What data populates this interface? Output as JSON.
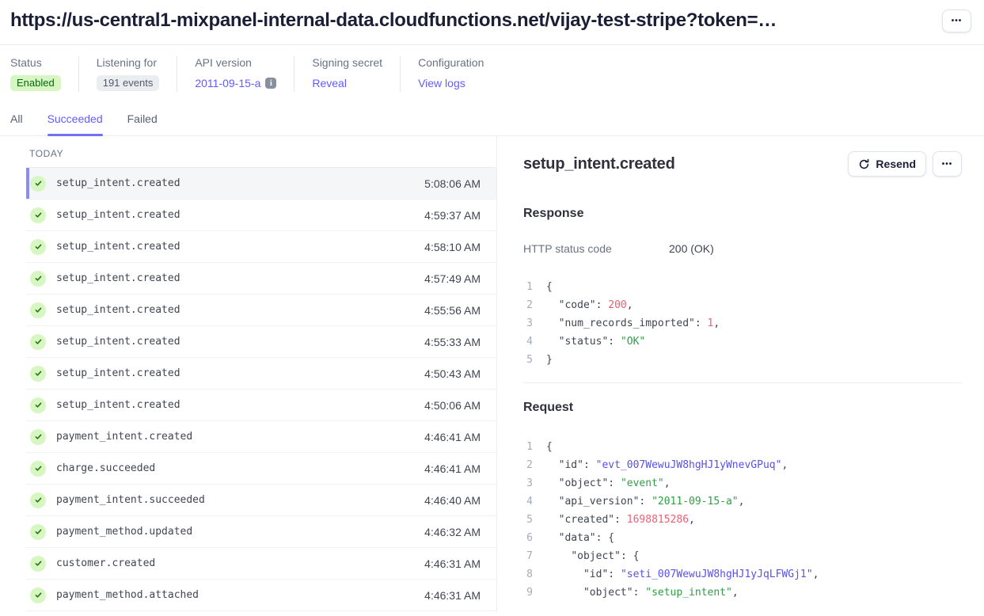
{
  "colors": {
    "accent": "#635bff",
    "success_bg": "#d7f7c2",
    "success_text": "#05690d",
    "code_num": "#ed5f74",
    "code_str": "#2f9e44",
    "code_id": "#5851ea"
  },
  "header": {
    "title": "https://us-central1-mixpanel-internal-data.cloudfunctions.net/vijay-test-stripe?token=…",
    "more_label": "•••"
  },
  "meta": [
    {
      "label": "Status",
      "type": "badge-green",
      "value": "Enabled"
    },
    {
      "label": "Listening for",
      "type": "badge-gray",
      "value": "191 events"
    },
    {
      "label": "API version",
      "type": "link-info",
      "value": "2011-09-15-a",
      "icon": "i"
    },
    {
      "label": "Signing secret",
      "type": "link",
      "value": "Reveal"
    },
    {
      "label": "Configuration",
      "type": "link",
      "value": "View logs"
    }
  ],
  "tabs": [
    {
      "label": "All",
      "active": false
    },
    {
      "label": "Succeeded",
      "active": true
    },
    {
      "label": "Failed",
      "active": false
    }
  ],
  "list": {
    "section_label": "TODAY",
    "rows": [
      {
        "event": "setup_intent.created",
        "time": "5:08:06 AM",
        "selected": true
      },
      {
        "event": "setup_intent.created",
        "time": "4:59:37 AM",
        "selected": false
      },
      {
        "event": "setup_intent.created",
        "time": "4:58:10 AM",
        "selected": false
      },
      {
        "event": "setup_intent.created",
        "time": "4:57:49 AM",
        "selected": false
      },
      {
        "event": "setup_intent.created",
        "time": "4:55:56 AM",
        "selected": false
      },
      {
        "event": "setup_intent.created",
        "time": "4:55:33 AM",
        "selected": false
      },
      {
        "event": "setup_intent.created",
        "time": "4:50:43 AM",
        "selected": false
      },
      {
        "event": "setup_intent.created",
        "time": "4:50:06 AM",
        "selected": false
      },
      {
        "event": "payment_intent.created",
        "time": "4:46:41 AM",
        "selected": false
      },
      {
        "event": "charge.succeeded",
        "time": "4:46:41 AM",
        "selected": false
      },
      {
        "event": "payment_intent.succeeded",
        "time": "4:46:40 AM",
        "selected": false
      },
      {
        "event": "payment_method.updated",
        "time": "4:46:32 AM",
        "selected": false
      },
      {
        "event": "customer.created",
        "time": "4:46:31 AM",
        "selected": false
      },
      {
        "event": "payment_method.attached",
        "time": "4:46:31 AM",
        "selected": false
      }
    ]
  },
  "detail": {
    "title": "setup_intent.created",
    "resend_label": "Resend",
    "more_label": "•••",
    "response": {
      "heading": "Response",
      "http_label": "HTTP status code",
      "http_value": "200 (OK)",
      "code": [
        {
          "n": "1",
          "tokens": [
            [
              "p",
              "{"
            ]
          ]
        },
        {
          "n": "2",
          "tokens": [
            [
              "p",
              "  "
            ],
            [
              "k",
              "\"code\""
            ],
            [
              "p",
              ": "
            ],
            [
              "num",
              "200"
            ],
            [
              "p",
              ","
            ]
          ]
        },
        {
          "n": "3",
          "tokens": [
            [
              "p",
              "  "
            ],
            [
              "k",
              "\"num_records_imported\""
            ],
            [
              "p",
              ": "
            ],
            [
              "num",
              "1"
            ],
            [
              "p",
              ","
            ]
          ]
        },
        {
          "n": "4",
          "tokens": [
            [
              "p",
              "  "
            ],
            [
              "k",
              "\"status\""
            ],
            [
              "p",
              ": "
            ],
            [
              "str",
              "\"OK\""
            ]
          ]
        },
        {
          "n": "5",
          "tokens": [
            [
              "p",
              "}"
            ]
          ]
        }
      ]
    },
    "request": {
      "heading": "Request",
      "code": [
        {
          "n": "1",
          "tokens": [
            [
              "p",
              "{"
            ]
          ]
        },
        {
          "n": "2",
          "tokens": [
            [
              "p",
              "  "
            ],
            [
              "k",
              "\"id\""
            ],
            [
              "p",
              ": "
            ],
            [
              "id",
              "\"evt_007WewuJW8hgHJ1yWnevGPuq\""
            ],
            [
              "p",
              ","
            ]
          ]
        },
        {
          "n": "3",
          "tokens": [
            [
              "p",
              "  "
            ],
            [
              "k",
              "\"object\""
            ],
            [
              "p",
              ": "
            ],
            [
              "str",
              "\"event\""
            ],
            [
              "p",
              ","
            ]
          ]
        },
        {
          "n": "4",
          "tokens": [
            [
              "p",
              "  "
            ],
            [
              "k",
              "\"api_version\""
            ],
            [
              "p",
              ": "
            ],
            [
              "str",
              "\"2011-09-15-a\""
            ],
            [
              "p",
              ","
            ]
          ]
        },
        {
          "n": "5",
          "tokens": [
            [
              "p",
              "  "
            ],
            [
              "k",
              "\"created\""
            ],
            [
              "p",
              ": "
            ],
            [
              "num",
              "1698815286"
            ],
            [
              "p",
              ","
            ]
          ]
        },
        {
          "n": "6",
          "tokens": [
            [
              "p",
              "  "
            ],
            [
              "k",
              "\"data\""
            ],
            [
              "p",
              ": {"
            ]
          ]
        },
        {
          "n": "7",
          "tokens": [
            [
              "p",
              "    "
            ],
            [
              "k",
              "\"object\""
            ],
            [
              "p",
              ": {"
            ]
          ]
        },
        {
          "n": "8",
          "tokens": [
            [
              "p",
              "      "
            ],
            [
              "k",
              "\"id\""
            ],
            [
              "p",
              ": "
            ],
            [
              "id",
              "\"seti_007WewuJW8hgHJ1yJqLFWGj1\""
            ],
            [
              "p",
              ","
            ]
          ]
        },
        {
          "n": "9",
          "tokens": [
            [
              "p",
              "      "
            ],
            [
              "k",
              "\"object\""
            ],
            [
              "p",
              ": "
            ],
            [
              "str",
              "\"setup_intent\""
            ],
            [
              "p",
              ","
            ]
          ]
        }
      ]
    }
  }
}
